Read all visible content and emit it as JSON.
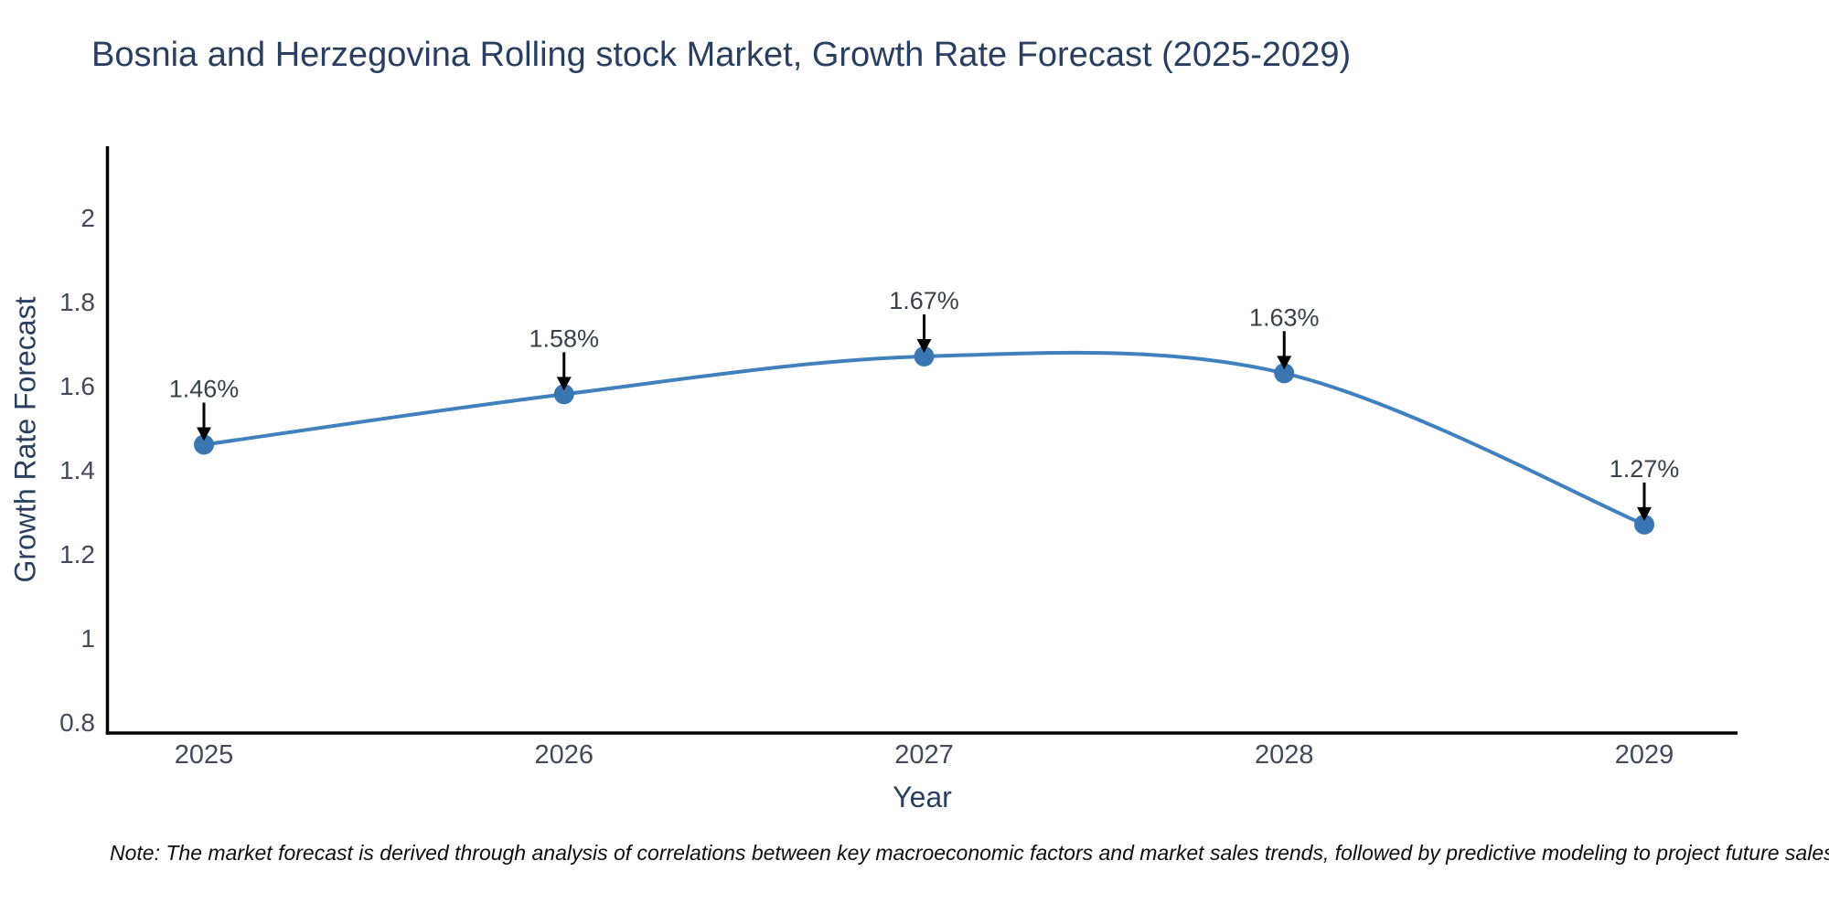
{
  "chart_data": {
    "type": "line",
    "title": "Bosnia and Herzegovina Rolling stock Market, Growth Rate Forecast (2025-2029)",
    "xlabel": "Year",
    "ylabel": "Growth Rate Forecast",
    "x": [
      "2025",
      "2026",
      "2027",
      "2028",
      "2029"
    ],
    "y": [
      1.46,
      1.58,
      1.67,
      1.63,
      1.27
    ],
    "point_labels": [
      "1.46%",
      "1.58%",
      "1.67%",
      "1.63%",
      "1.27%"
    ],
    "ytick_labels": [
      "0.8",
      "1",
      "1.2",
      "1.4",
      "1.6",
      "1.8",
      "2"
    ],
    "ytick_values": [
      0.8,
      1,
      1.2,
      1.4,
      1.6,
      1.8,
      2
    ],
    "ylim": [
      0.774,
      2.17
    ],
    "line_shape": "spline",
    "grid": false,
    "legend_position": "none",
    "colors": {
      "line": "#3f80bd",
      "marker": "#3a76b2",
      "arrow": "#000000",
      "axis_line": "#000000",
      "title_text": "#2a3f5f",
      "axis_title_text": "#2a3f5f",
      "tick_text": "#42495a",
      "label_text": "#3a4049"
    },
    "note": "Note: The market forecast is derived through analysis of correlations between key macroeconomic factors and market sales trends, followed by predictive modeling to project future sales"
  }
}
